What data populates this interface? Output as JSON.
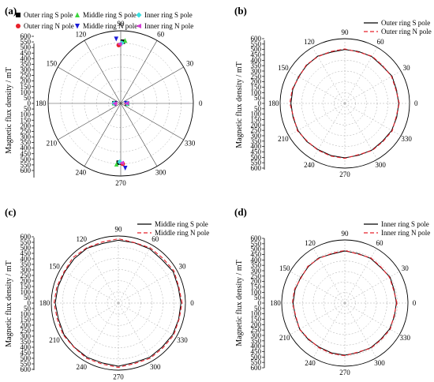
{
  "chart_data": [
    {
      "type": "scatter",
      "polar": true,
      "panel_label": "(a)",
      "ylabel": "Magnetic flux density / mT",
      "rlim": [
        0,
        600
      ],
      "r_ticks": [
        0,
        50,
        100,
        150,
        200,
        250,
        300,
        350,
        400,
        450,
        500,
        550,
        600
      ],
      "r_tick_labels": [
        "0",
        "50",
        "100",
        "150",
        "200",
        "250",
        "300",
        "350",
        "400",
        "450",
        "500",
        "550",
        "600"
      ],
      "angle_ticks": [
        "0",
        "30",
        "60",
        "90",
        "120",
        "150",
        "180",
        "210",
        "240",
        "270",
        "300",
        "330"
      ],
      "legend_position": "top",
      "series": [
        {
          "name": "Outer ring S pole",
          "marker": "square",
          "color": "#000000",
          "points": [
            [
              88,
              510
            ],
            [
              268,
              490
            ],
            [
              178,
              52
            ],
            [
              358,
              52
            ]
          ]
        },
        {
          "name": "Outer ring N pole",
          "marker": "circle",
          "color": "#e8202a",
          "points": [
            [
              92,
              482
            ],
            [
              272,
              500
            ],
            [
              182,
              48
            ],
            [
              2,
              48
            ]
          ]
        },
        {
          "name": "Middle ring S pole",
          "marker": "triangle-up",
          "color": "#3cd63c",
          "points": [
            [
              86,
              520
            ],
            [
              266,
              505
            ],
            [
              177,
              56
            ],
            [
              357,
              56
            ]
          ]
        },
        {
          "name": "Middle ring N pole",
          "marker": "triangle-down",
          "color": "#1a1ad8",
          "points": [
            [
              94,
              535
            ],
            [
              274,
              535
            ],
            [
              183,
              45
            ],
            [
              3,
              45
            ]
          ]
        },
        {
          "name": "Inner ring S pole",
          "marker": "diamond",
          "color": "#38e0e0",
          "points": [
            [
              89,
              500
            ],
            [
              269,
              485
            ],
            [
              179,
              55
            ],
            [
              359,
              55
            ]
          ]
        },
        {
          "name": "Inner ring N pole",
          "marker": "triangle-left",
          "color": "#d43cd4",
          "points": [
            [
              91,
              490
            ],
            [
              271,
              492
            ],
            [
              181,
              50
            ],
            [
              1,
              50
            ]
          ]
        }
      ]
    },
    {
      "type": "line",
      "polar": true,
      "panel_label": "(b)",
      "ylabel": "Magnetic flux density / mT",
      "rlim": [
        0,
        600
      ],
      "r_ticks": [
        0,
        50,
        100,
        150,
        200,
        250,
        300,
        350,
        400,
        450,
        500,
        550,
        600
      ],
      "r_tick_labels": [
        "0",
        "50",
        "100",
        "150",
        "200",
        "250",
        "300",
        "350",
        "400",
        "450",
        "500",
        "550",
        "600"
      ],
      "angle_ticks": [
        "0",
        "30",
        "60",
        "90",
        "120",
        "150",
        "180",
        "210",
        "240",
        "270",
        "300",
        "330"
      ],
      "legend_position": "top-right",
      "theta": [
        0,
        15,
        30,
        45,
        60,
        75,
        90,
        105,
        120,
        135,
        150,
        165,
        180,
        195,
        210,
        225,
        240,
        255,
        270,
        285,
        300,
        315,
        330,
        345,
        360
      ],
      "series": [
        {
          "name": "Outer ring S pole",
          "color": "#000000",
          "dash": "solid",
          "values": [
            500,
            495,
            505,
            490,
            500,
            498,
            500,
            492,
            505,
            500,
            495,
            500,
            500,
            497,
            502,
            500,
            495,
            500,
            505,
            498,
            500,
            495,
            502,
            498,
            500
          ]
        },
        {
          "name": "Outer ring N pole",
          "color": "#e8202a",
          "dash": "dashed",
          "values": [
            505,
            490,
            500,
            495,
            505,
            492,
            505,
            498,
            500,
            505,
            490,
            505,
            510,
            492,
            508,
            495,
            500,
            505,
            510,
            492,
            505,
            500,
            508,
            492,
            505
          ]
        }
      ]
    },
    {
      "type": "line",
      "polar": true,
      "panel_label": "(c)",
      "ylabel": "Magnetic flux density / mT",
      "rlim": [
        0,
        600
      ],
      "r_ticks": [
        0,
        50,
        100,
        150,
        200,
        250,
        300,
        350,
        400,
        450,
        500,
        550,
        600
      ],
      "r_tick_labels": [
        "0",
        "50",
        "100",
        "150",
        "200",
        "250",
        "300",
        "350",
        "400",
        "450",
        "500",
        "550",
        "600"
      ],
      "angle_ticks": [
        "0",
        "30",
        "60",
        "90",
        "120",
        "150",
        "180",
        "210",
        "240",
        "270",
        "300",
        "330"
      ],
      "legend_position": "top-right",
      "theta": [
        0,
        15,
        30,
        45,
        60,
        75,
        90,
        105,
        120,
        135,
        150,
        165,
        180,
        195,
        210,
        225,
        240,
        255,
        270,
        285,
        300,
        315,
        330,
        345,
        360
      ],
      "series": [
        {
          "name": "Middle ring S pole",
          "color": "#000000",
          "dash": "solid",
          "values": [
            560,
            555,
            565,
            550,
            560,
            558,
            562,
            552,
            565,
            560,
            555,
            560,
            565,
            555,
            562,
            558,
            560,
            555,
            565,
            550,
            560,
            555,
            562,
            558,
            560
          ]
        },
        {
          "name": "Middle ring N pole",
          "color": "#e8202a",
          "dash": "dashed",
          "values": [
            570,
            560,
            575,
            565,
            570,
            560,
            575,
            565,
            570,
            575,
            560,
            570,
            575,
            565,
            570,
            560,
            570,
            565,
            575,
            560,
            570,
            565,
            572,
            562,
            570
          ]
        }
      ]
    },
    {
      "type": "line",
      "polar": true,
      "panel_label": "(d)",
      "ylabel": "Magnetic flux density / mT",
      "rlim": [
        0,
        600
      ],
      "r_ticks": [
        0,
        50,
        100,
        150,
        200,
        250,
        300,
        350,
        400,
        450,
        500,
        550,
        600
      ],
      "r_tick_labels": [
        "0",
        "50",
        "100",
        "150",
        "200",
        "250",
        "300",
        "350",
        "400",
        "450",
        "500",
        "550",
        "600"
      ],
      "angle_ticks": [
        "0",
        "30",
        "60",
        "90",
        "120",
        "150",
        "180",
        "210",
        "240",
        "270",
        "300",
        "330"
      ],
      "legend_position": "top-right",
      "theta": [
        0,
        15,
        30,
        45,
        60,
        75,
        90,
        105,
        120,
        135,
        150,
        165,
        180,
        195,
        210,
        225,
        240,
        255,
        270,
        285,
        300,
        315,
        330,
        345,
        360
      ],
      "series": [
        {
          "name": "Inner ring S pole",
          "color": "#000000",
          "dash": "solid",
          "values": [
            490,
            485,
            495,
            480,
            490,
            488,
            495,
            482,
            495,
            490,
            485,
            490,
            492,
            487,
            495,
            490,
            485,
            490,
            495,
            488,
            490,
            485,
            492,
            488,
            490
          ]
        },
        {
          "name": "Inner ring N pole",
          "color": "#e8202a",
          "dash": "dashed",
          "values": [
            495,
            480,
            490,
            485,
            495,
            482,
            500,
            488,
            490,
            495,
            480,
            495,
            498,
            482,
            498,
            485,
            490,
            495,
            500,
            482,
            495,
            490,
            498,
            482,
            495
          ]
        }
      ]
    }
  ]
}
